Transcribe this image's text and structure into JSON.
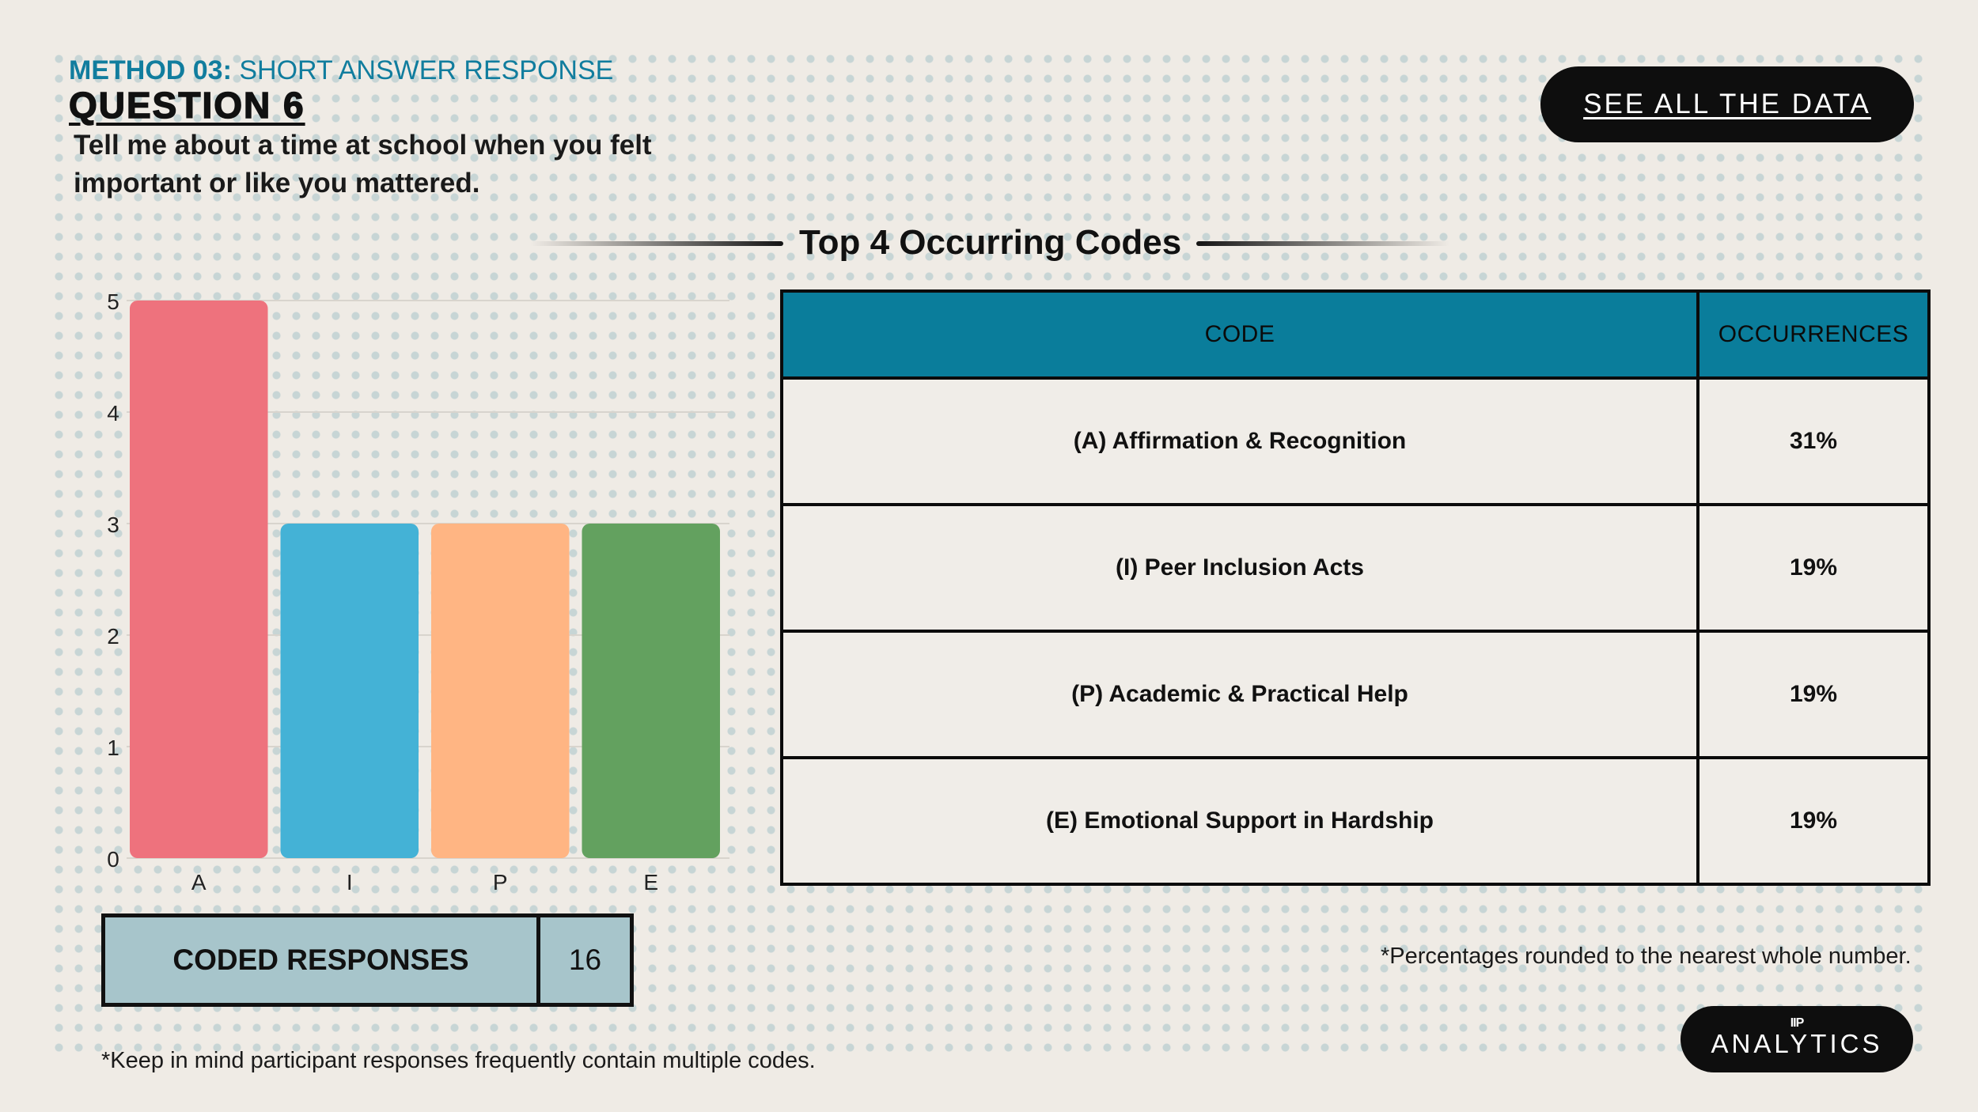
{
  "header": {
    "method_prefix": "METHOD 03:",
    "method_name": "SHORT ANSWER RESPONSE",
    "question": "QUESTION 6",
    "prompt": "Tell me about a time at school when you felt important or like you mattered."
  },
  "see_all_button": "SEE ALL THE DATA",
  "section_title": "Top 4 Occurring Codes",
  "chart_data": {
    "type": "bar",
    "categories": [
      "A",
      "I",
      "P",
      "E"
    ],
    "values": [
      5,
      3,
      3,
      3
    ],
    "colors": [
      "#ee727d",
      "#44b2d6",
      "#ffb583",
      "#63a15f"
    ],
    "ylim": [
      0,
      5
    ],
    "yticks": [
      0,
      1,
      2,
      3,
      4,
      5
    ],
    "grid": true,
    "title": "",
    "xlabel": "",
    "ylabel": ""
  },
  "table": {
    "headers": [
      "CODE",
      "OCCURRENCES"
    ],
    "rows": [
      {
        "code": "(A) Affirmation & Recognition",
        "occurrences": "31%"
      },
      {
        "code": "(I) Peer Inclusion Acts",
        "occurrences": "19%"
      },
      {
        "code": "(P) Academic & Practical Help",
        "occurrences": "19%"
      },
      {
        "code": "(E) Emotional Support in Hardship",
        "occurrences": "19%"
      }
    ]
  },
  "coded_responses": {
    "label": "CODED RESPONSES",
    "value": "16"
  },
  "notes": {
    "percentages": "*Percentages rounded to the nearest whole number.",
    "multiple_codes": "*Keep in mind participant responses frequently contain multiple codes."
  },
  "logo": {
    "mark": "IIP",
    "text": "ANALYTICS"
  }
}
